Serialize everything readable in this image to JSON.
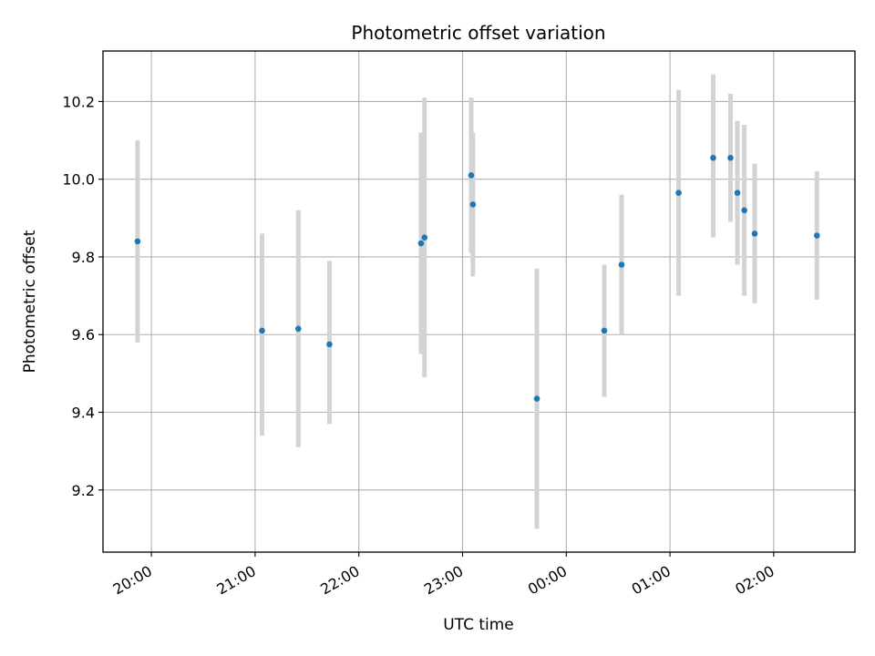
{
  "chart_data": {
    "type": "scatter",
    "title": "Photometric offset variation",
    "xlabel": "UTC time",
    "ylabel": "Photometric offset",
    "x_ticks": [
      "20:00",
      "21:00",
      "22:00",
      "23:00",
      "00:00",
      "01:00",
      "02:00"
    ],
    "y_ticks": [
      "9.2",
      "9.4",
      "9.6",
      "9.8",
      "10.0",
      "10.2"
    ],
    "ylim": [
      9.04,
      10.33
    ],
    "xlim": [
      "19:32",
      "02:47"
    ],
    "grid": true,
    "marker_color": "#1f77b4",
    "errorbar_color": "#d3d3d3",
    "points": [
      {
        "x": "19:52",
        "y": 9.84,
        "ylow": 9.58,
        "yhigh": 10.1
      },
      {
        "x": "21:04",
        "y": 9.61,
        "ylow": 9.34,
        "yhigh": 9.86
      },
      {
        "x": "21:25",
        "y": 9.615,
        "ylow": 9.31,
        "yhigh": 9.92
      },
      {
        "x": "21:43",
        "y": 9.575,
        "ylow": 9.37,
        "yhigh": 9.79
      },
      {
        "x": "22:36",
        "y": 9.835,
        "ylow": 9.55,
        "yhigh": 10.12
      },
      {
        "x": "22:38",
        "y": 9.85,
        "ylow": 9.49,
        "yhigh": 10.21
      },
      {
        "x": "23:05",
        "y": 10.01,
        "ylow": 9.81,
        "yhigh": 10.21
      },
      {
        "x": "23:06",
        "y": 9.935,
        "ylow": 9.75,
        "yhigh": 10.12
      },
      {
        "x": "23:43",
        "y": 9.435,
        "ylow": 9.1,
        "yhigh": 9.77
      },
      {
        "x": "00:22",
        "y": 9.61,
        "ylow": 9.44,
        "yhigh": 9.78
      },
      {
        "x": "00:32",
        "y": 9.78,
        "ylow": 9.6,
        "yhigh": 9.96
      },
      {
        "x": "01:05",
        "y": 9.965,
        "ylow": 9.7,
        "yhigh": 10.23
      },
      {
        "x": "01:25",
        "y": 10.055,
        "ylow": 9.85,
        "yhigh": 10.27
      },
      {
        "x": "01:35",
        "y": 10.055,
        "ylow": 9.89,
        "yhigh": 10.22
      },
      {
        "x": "01:39",
        "y": 9.965,
        "ylow": 9.78,
        "yhigh": 10.15
      },
      {
        "x": "01:43",
        "y": 9.92,
        "ylow": 9.7,
        "yhigh": 10.14
      },
      {
        "x": "01:49",
        "y": 9.86,
        "ylow": 9.68,
        "yhigh": 10.04
      },
      {
        "x": "02:25",
        "y": 9.855,
        "ylow": 9.69,
        "yhigh": 10.02
      }
    ]
  }
}
